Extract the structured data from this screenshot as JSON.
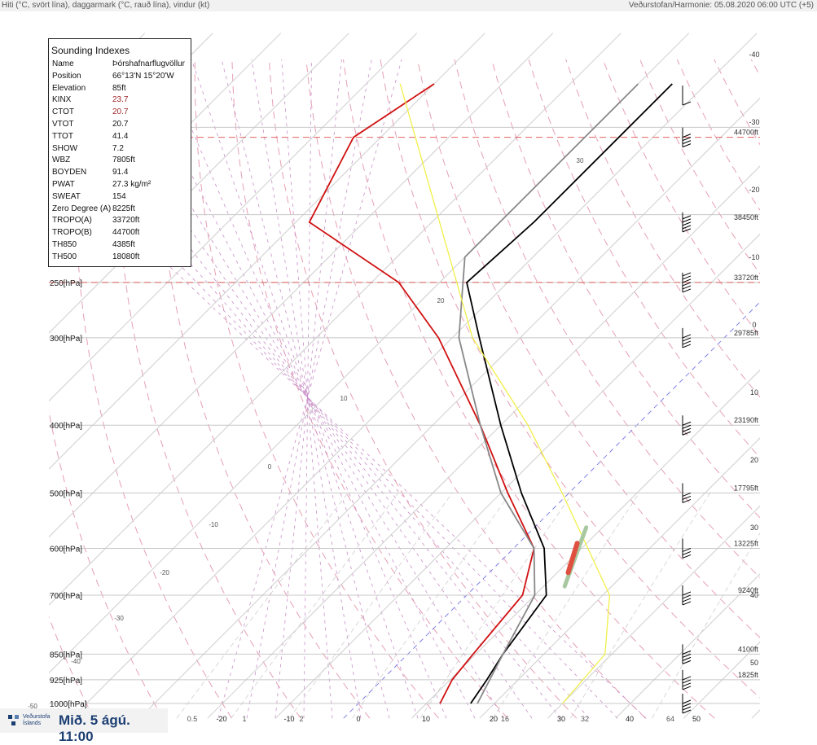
{
  "header": {
    "left": "Hiti (°C, svört lína), daggarmark (°C, rauð lína), vindur (kt)",
    "right": "Veðurstofan/Harmonie: 05.08.2020 06:00 UTC (+5)"
  },
  "footer": {
    "logo_text": "Veðurstofa Íslands",
    "time": "Mið. 5 ágú. 11:00",
    "brand_color": "#1c3f73"
  },
  "indexes": {
    "title": "Sounding Indexes",
    "rows": [
      {
        "k": "Name",
        "v": "Þórshafnarflugvöllur"
      },
      {
        "k": "Position",
        "v": "66°13'N 15°20'W"
      },
      {
        "k": "Elevation",
        "v": "85ft"
      },
      {
        "k": "KINX",
        "v": "23.7",
        "highlight": true
      },
      {
        "k": "CTOT",
        "v": "20.7",
        "highlight": true
      },
      {
        "k": "VTOT",
        "v": "20.7"
      },
      {
        "k": "TTOT",
        "v": "41.4"
      },
      {
        "k": "SHOW",
        "v": "7.2"
      },
      {
        "k": "WBZ",
        "v": "7805ft"
      },
      {
        "k": "BOYDEN",
        "v": "91.4"
      },
      {
        "k": "PWAT",
        "v": "27.3 kg/m²"
      },
      {
        "k": "SWEAT",
        "v": "154"
      },
      {
        "k": "Zero Degree (A)",
        "v": "8225ft"
      },
      {
        "k": "TROPO(A)",
        "v": "33720ft"
      },
      {
        "k": "TROPO(B)",
        "v": "44700ft"
      },
      {
        "k": "TH850",
        "v": "4385ft"
      },
      {
        "k": "TH500",
        "v": "18080ft"
      }
    ],
    "highlight_color": "#a0282a"
  },
  "chart_data": {
    "type": "line",
    "subtype": "skew-T log-P sounding",
    "x_axis": {
      "label": "",
      "ticks": [
        "-20",
        "-10",
        "0",
        "10",
        "20",
        "30",
        "40",
        "50"
      ],
      "unit": "°C"
    },
    "y_axis": {
      "scale": "log",
      "unit": "hPa",
      "range": [
        1000,
        130
      ]
    },
    "pressure_labels": [
      "250[hPa]",
      "300[hPa]",
      "400[hPa]",
      "500[hPa]",
      "600[hPa]",
      "700[hPa]",
      "850[hPa]",
      "925[hPa]",
      "1000[hPa]"
    ],
    "height_labels": [
      {
        "p": 155,
        "label": "44700ft"
      },
      {
        "p": 205,
        "label": "38450ft"
      },
      {
        "p": 250,
        "label": "33720ft"
      },
      {
        "p": 300,
        "label": "29785ft"
      },
      {
        "p": 400,
        "label": "23190ft"
      },
      {
        "p": 500,
        "label": "17795ft"
      },
      {
        "p": 600,
        "label": "13225ft"
      },
      {
        "p": 700,
        "label": "9240ft"
      },
      {
        "p": 850,
        "label": "4100ft"
      },
      {
        "p": 925,
        "label": "1825ft"
      }
    ],
    "tropopause_lines_hpa": [
      155,
      250
    ],
    "right_labels": [
      "-40",
      "-30",
      "-20",
      "-10",
      "0",
      "10",
      "20",
      "30",
      "40",
      "50"
    ],
    "bottom_extra_labels": [
      "0.5",
      "1",
      "2",
      "16",
      "32",
      "64"
    ],
    "isopleth_labels": [
      {
        "text": "30"
      },
      {
        "text": "20"
      },
      {
        "text": "10"
      },
      {
        "text": "0"
      },
      {
        "text": "-10"
      },
      {
        "text": "-20"
      },
      {
        "text": "-30"
      },
      {
        "text": "-40"
      },
      {
        "text": "-50"
      }
    ],
    "series": [
      {
        "key": "temperature",
        "color": "#000000",
        "points": [
          [
            1000,
            16.5
          ],
          [
            925,
            15.4
          ],
          [
            850,
            14.0
          ],
          [
            700,
            11.7
          ],
          [
            600,
            4.5
          ],
          [
            500,
            -7.0
          ],
          [
            400,
            -20.0
          ],
          [
            300,
            -36.0
          ],
          [
            250,
            -46.0
          ],
          [
            205,
            -45.0
          ],
          [
            130,
            -45.0
          ]
        ]
      },
      {
        "key": "dewpoint",
        "color": "#d01010",
        "points": [
          [
            1000,
            12.0
          ],
          [
            925,
            10.3
          ],
          [
            850,
            9.6
          ],
          [
            700,
            8.2
          ],
          [
            600,
            3.0
          ],
          [
            500,
            -9.0
          ],
          [
            400,
            -23.0
          ],
          [
            300,
            -42.0
          ],
          [
            250,
            -56.0
          ],
          [
            205,
            -78.0
          ],
          [
            155,
            -84.0
          ],
          [
            130,
            -80.0
          ]
        ]
      },
      {
        "key": "virtual",
        "color": "#888888",
        "points": [
          [
            1000,
            17.5
          ],
          [
            850,
            14.0
          ],
          [
            700,
            10.0
          ],
          [
            600,
            3.0
          ],
          [
            500,
            -10.0
          ],
          [
            400,
            -23.0
          ],
          [
            300,
            -39.0
          ],
          [
            230,
            -50.0
          ],
          [
            130,
            -50.0
          ]
        ]
      },
      {
        "key": "parcel",
        "color": "#f2ef4a",
        "points": [
          [
            1000,
            30.0
          ],
          [
            850,
            29.0
          ],
          [
            700,
            21.0
          ],
          [
            500,
            -1.0
          ],
          [
            400,
            -16.0
          ],
          [
            300,
            -37.0
          ],
          [
            130,
            -85.0
          ]
        ]
      }
    ],
    "wind_barbs": [
      {
        "p": 135,
        "speed": 10
      },
      {
        "p": 155,
        "speed": 40
      },
      {
        "p": 205,
        "speed": 45
      },
      {
        "p": 250,
        "speed": 55
      },
      {
        "p": 300,
        "speed": 40
      },
      {
        "p": 400,
        "speed": 35
      },
      {
        "p": 500,
        "speed": 30
      },
      {
        "p": 600,
        "speed": 30
      },
      {
        "p": 700,
        "speed": 35
      },
      {
        "p": 850,
        "speed": 40
      },
      {
        "p": 925,
        "speed": 40
      },
      {
        "p": 1000,
        "speed": 40
      }
    ],
    "colors": {
      "isobar": "#c8c8c8",
      "isotherm": "#cfcfcf",
      "dry_adiabat": "#e6a0b2",
      "moist_adiabat": "#c990c8",
      "mixing_ratio": "#cfcfcf",
      "tropo": "#e06262",
      "zero_isotherm": "#8080e8"
    }
  }
}
